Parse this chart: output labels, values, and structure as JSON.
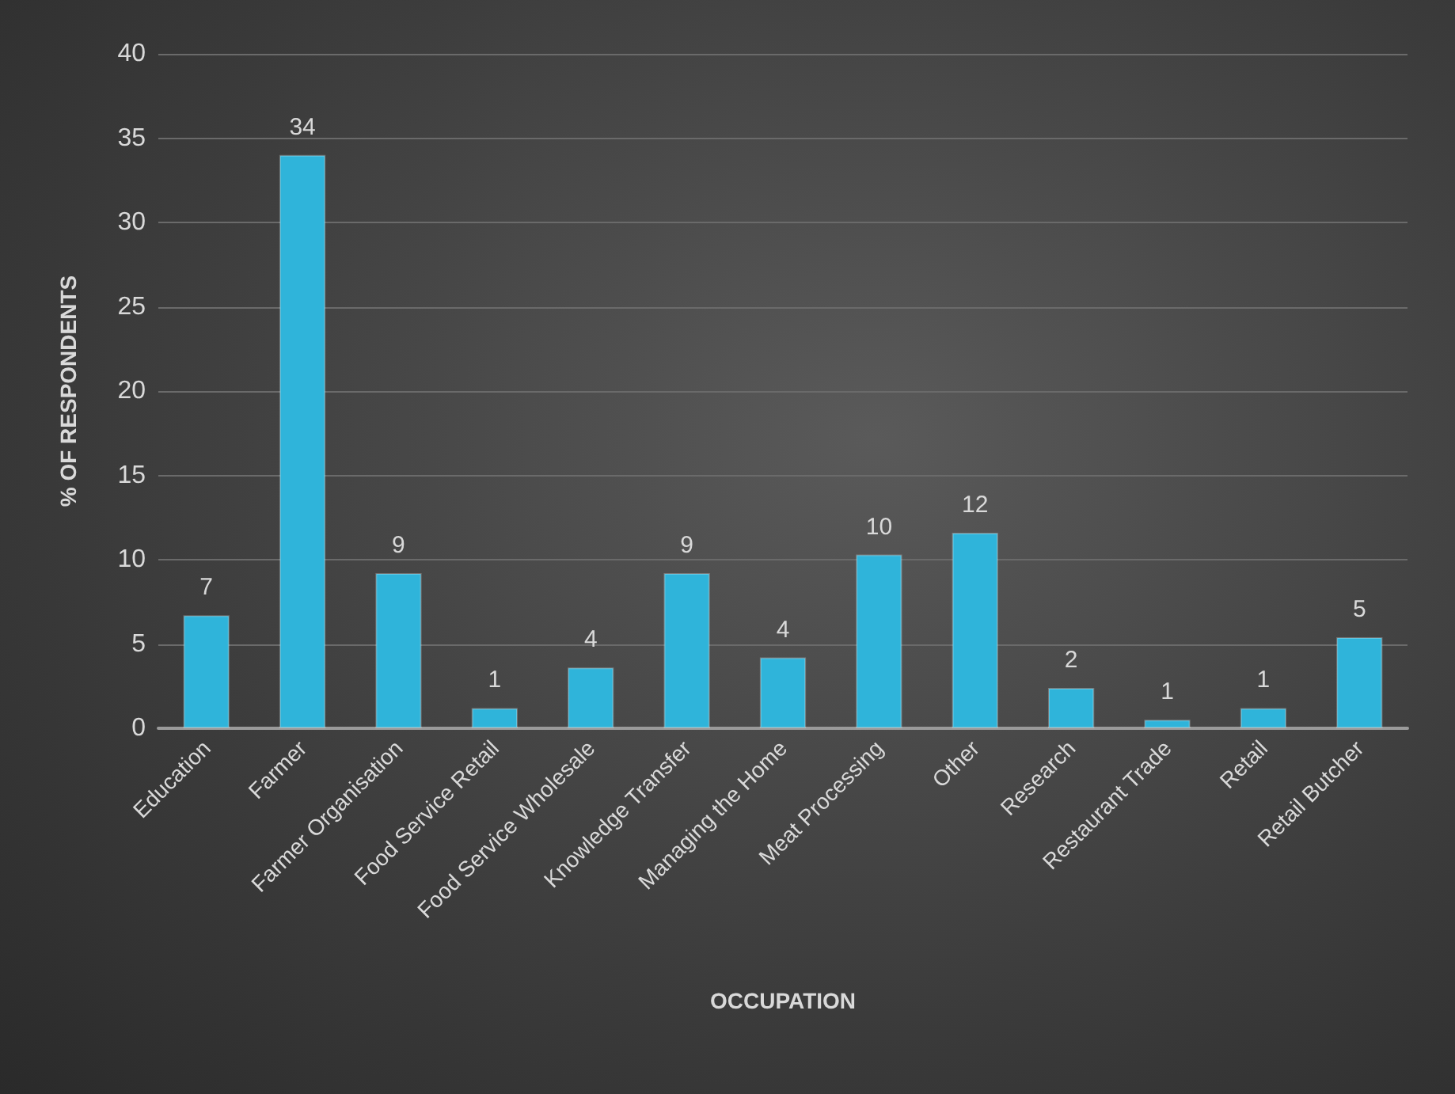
{
  "chart_data": {
    "type": "bar",
    "xlabel": "OCCUPATION",
    "ylabel": "% OF RESPONDENTS",
    "categories": [
      "Education",
      "Farmer",
      "Farmer Organisation",
      "Food Service Retail",
      "Food Service Wholesale",
      "Knowledge Transfer",
      "Managing the Home",
      "Meat Processing",
      "Other",
      "Research",
      "Restaurant Trade",
      "Retail",
      "Retail Butcher"
    ],
    "values": [
      6.7,
      34.0,
      9.2,
      1.2,
      3.6,
      9.2,
      4.2,
      10.3,
      11.6,
      2.4,
      0.5,
      1.2,
      5.4
    ],
    "value_labels": [
      "7",
      "34",
      "9",
      "1",
      "4",
      "9",
      "4",
      "10",
      "12",
      "2",
      "1",
      "1",
      "5"
    ],
    "color": "#2fb4da",
    "ylim": [
      0,
      40
    ],
    "yticks": [
      0,
      5,
      10,
      15,
      20,
      25,
      30,
      35,
      40
    ],
    "grid": "y"
  }
}
